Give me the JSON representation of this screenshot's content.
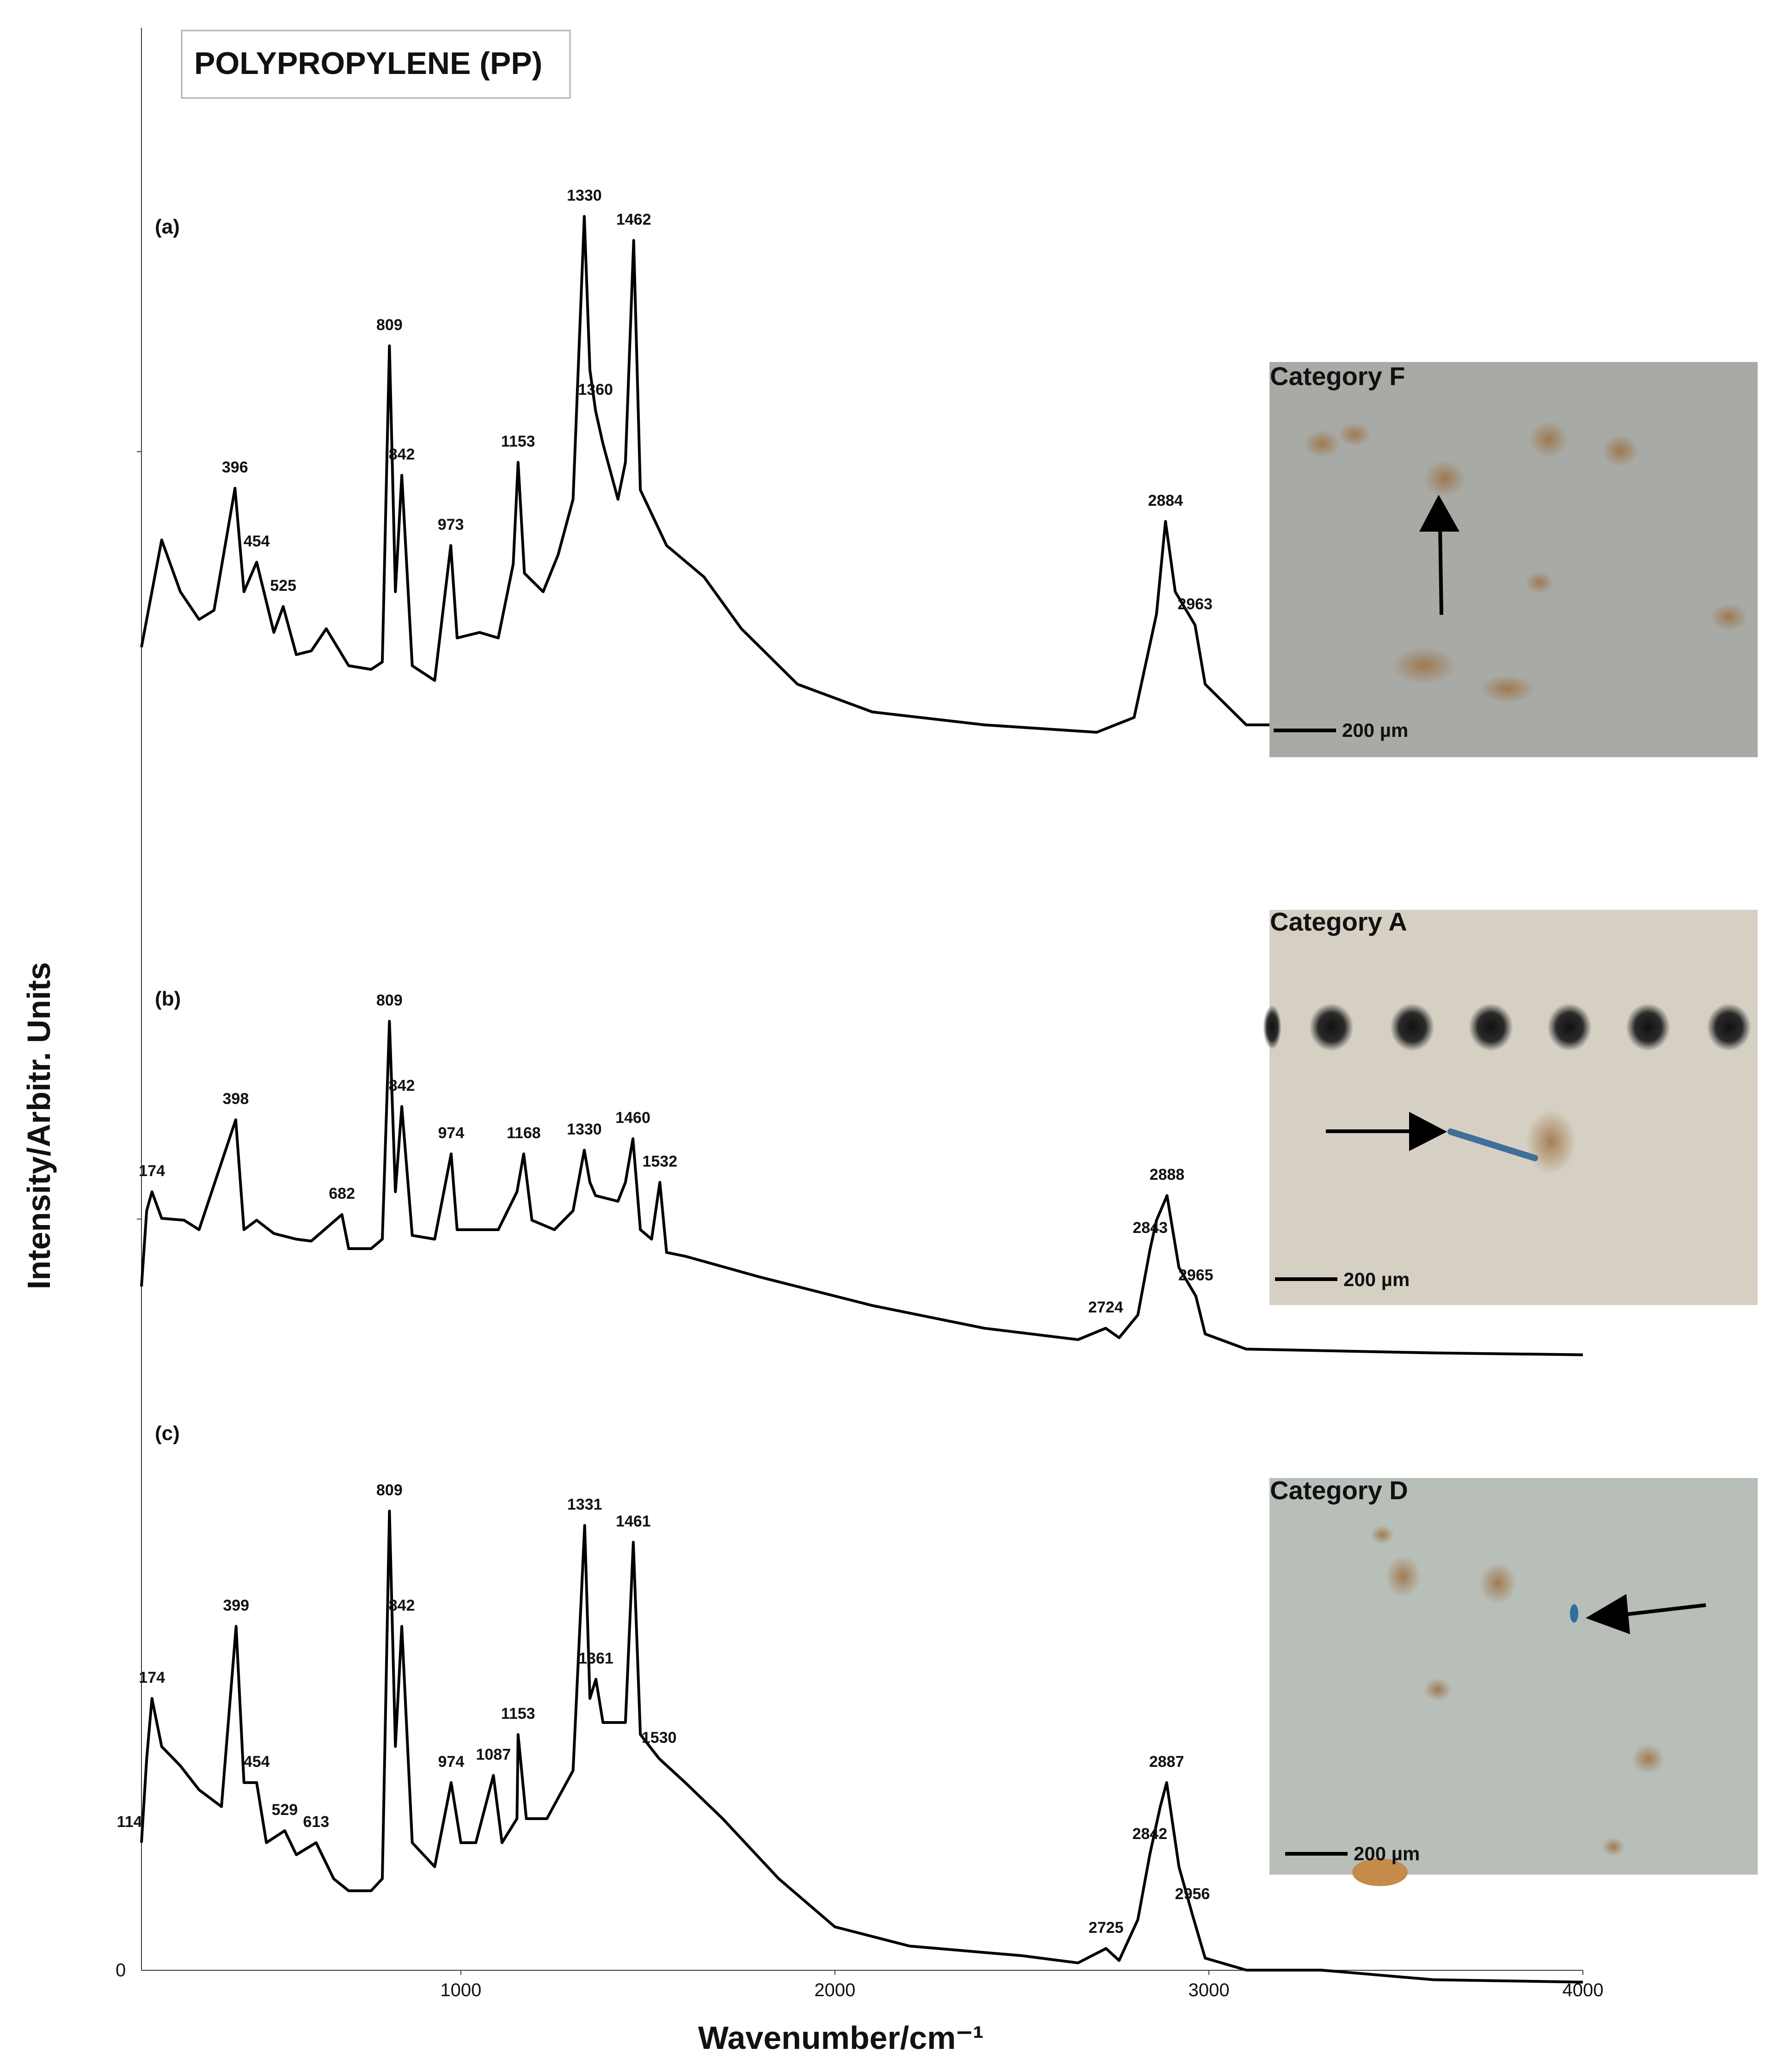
{
  "chart_data": {
    "type": "line",
    "title": "POLYPROPYLENE (PP)",
    "xlabel": "Wavenumber/cm⁻¹",
    "ylabel": "Intensity/Arbitr. Units",
    "xlim": [
      146,
      4000
    ],
    "x_ticks": [
      1000,
      2000,
      3000,
      4000
    ],
    "y_zero_label": "0",
    "grid": false,
    "series": [
      {
        "label": "(a)",
        "points": [
          [
            146,
            0.0
          ],
          [
            200,
            0.58
          ],
          [
            250,
            0.3
          ],
          [
            300,
            0.15
          ],
          [
            340,
            0.2
          ],
          [
            396,
            0.86
          ],
          [
            420,
            0.3
          ],
          [
            454,
            0.46
          ],
          [
            500,
            0.08
          ],
          [
            525,
            0.22
          ],
          [
            560,
            -0.04
          ],
          [
            600,
            -0.02
          ],
          [
            640,
            0.1
          ],
          [
            700,
            -0.1
          ],
          [
            760,
            -0.12
          ],
          [
            790,
            -0.08
          ],
          [
            809,
            1.63
          ],
          [
            825,
            0.3
          ],
          [
            842,
            0.93
          ],
          [
            870,
            -0.1
          ],
          [
            930,
            -0.18
          ],
          [
            973,
            0.55
          ],
          [
            990,
            0.05
          ],
          [
            1050,
            0.08
          ],
          [
            1100,
            0.05
          ],
          [
            1140,
            0.45
          ],
          [
            1153,
            1.0
          ],
          [
            1170,
            0.4
          ],
          [
            1220,
            0.3
          ],
          [
            1260,
            0.5
          ],
          [
            1300,
            0.8
          ],
          [
            1330,
            2.33
          ],
          [
            1345,
            1.5
          ],
          [
            1360,
            1.28
          ],
          [
            1380,
            1.1
          ],
          [
            1420,
            0.8
          ],
          [
            1440,
            1.0
          ],
          [
            1462,
            2.2
          ],
          [
            1480,
            0.85
          ],
          [
            1550,
            0.55
          ],
          [
            1650,
            0.38
          ],
          [
            1750,
            0.1
          ],
          [
            1900,
            -0.2
          ],
          [
            2100,
            -0.35
          ],
          [
            2400,
            -0.42
          ],
          [
            2700,
            -0.46
          ],
          [
            2800,
            -0.38
          ],
          [
            2860,
            0.18
          ],
          [
            2884,
            0.68
          ],
          [
            2910,
            0.3
          ],
          [
            2963,
            0.12
          ],
          [
            2990,
            -0.2
          ],
          [
            3100,
            -0.42
          ],
          [
            3600,
            -0.42
          ],
          [
            4000,
            -0.45
          ]
        ],
        "peaks": [
          396,
          454,
          525,
          809,
          842,
          973,
          1153,
          1330,
          1360,
          1462,
          2884,
          2963
        ]
      },
      {
        "label": "(b)",
        "points": [
          [
            146,
            -0.3
          ],
          [
            160,
            0.1
          ],
          [
            174,
            0.2
          ],
          [
            200,
            0.06
          ],
          [
            260,
            0.05
          ],
          [
            300,
            0.0
          ],
          [
            398,
            0.58
          ],
          [
            420,
            0.0
          ],
          [
            454,
            0.05
          ],
          [
            500,
            -0.02
          ],
          [
            560,
            -0.05
          ],
          [
            600,
            -0.06
          ],
          [
            682,
            0.08
          ],
          [
            700,
            -0.1
          ],
          [
            760,
            -0.1
          ],
          [
            790,
            -0.05
          ],
          [
            809,
            1.1
          ],
          [
            825,
            0.2
          ],
          [
            842,
            0.65
          ],
          [
            870,
            -0.03
          ],
          [
            930,
            -0.05
          ],
          [
            974,
            0.4
          ],
          [
            990,
            0.0
          ],
          [
            1050,
            0.0
          ],
          [
            1100,
            0.0
          ],
          [
            1150,
            0.2
          ],
          [
            1168,
            0.4
          ],
          [
            1190,
            0.05
          ],
          [
            1250,
            0.0
          ],
          [
            1300,
            0.1
          ],
          [
            1330,
            0.42
          ],
          [
            1345,
            0.25
          ],
          [
            1360,
            0.18
          ],
          [
            1420,
            0.15
          ],
          [
            1440,
            0.25
          ],
          [
            1460,
            0.48
          ],
          [
            1480,
            0.0
          ],
          [
            1510,
            -0.05
          ],
          [
            1532,
            0.25
          ],
          [
            1550,
            -0.12
          ],
          [
            1600,
            -0.14
          ],
          [
            1800,
            -0.25
          ],
          [
            2100,
            -0.4
          ],
          [
            2400,
            -0.52
          ],
          [
            2650,
            -0.58
          ],
          [
            2724,
            -0.52
          ],
          [
            2760,
            -0.57
          ],
          [
            2810,
            -0.45
          ],
          [
            2843,
            -0.1
          ],
          [
            2860,
            0.05
          ],
          [
            2888,
            0.18
          ],
          [
            2920,
            -0.2
          ],
          [
            2965,
            -0.35
          ],
          [
            2990,
            -0.55
          ],
          [
            3100,
            -0.63
          ],
          [
            3600,
            -0.65
          ],
          [
            4000,
            -0.66
          ]
        ],
        "peaks": [
          174,
          398,
          682,
          809,
          842,
          974,
          1168,
          1330,
          1460,
          1532,
          2724,
          2843,
          2888,
          2965
        ]
      },
      {
        "label": "(c)",
        "points": [
          [
            146,
            -0.3
          ],
          [
            160,
            0.05
          ],
          [
            174,
            0.3
          ],
          [
            200,
            0.1
          ],
          [
            250,
            0.02
          ],
          [
            300,
            -0.08
          ],
          [
            360,
            -0.15
          ],
          [
            399,
            0.6
          ],
          [
            420,
            -0.05
          ],
          [
            454,
            -0.05
          ],
          [
            480,
            -0.3
          ],
          [
            529,
            -0.25
          ],
          [
            560,
            -0.35
          ],
          [
            613,
            -0.3
          ],
          [
            660,
            -0.45
          ],
          [
            700,
            -0.5
          ],
          [
            760,
            -0.5
          ],
          [
            790,
            -0.45
          ],
          [
            809,
            1.08
          ],
          [
            825,
            0.1
          ],
          [
            842,
            0.6
          ],
          [
            870,
            -0.3
          ],
          [
            930,
            -0.4
          ],
          [
            974,
            -0.05
          ],
          [
            1000,
            -0.3
          ],
          [
            1040,
            -0.3
          ],
          [
            1087,
            -0.02
          ],
          [
            1110,
            -0.3
          ],
          [
            1150,
            -0.2
          ],
          [
            1153,
            0.15
          ],
          [
            1175,
            -0.2
          ],
          [
            1230,
            -0.2
          ],
          [
            1300,
            0.0
          ],
          [
            1331,
            1.02
          ],
          [
            1345,
            0.3
          ],
          [
            1361,
            0.38
          ],
          [
            1380,
            0.2
          ],
          [
            1440,
            0.2
          ],
          [
            1461,
            0.95
          ],
          [
            1480,
            0.15
          ],
          [
            1530,
            0.05
          ],
          [
            1600,
            -0.05
          ],
          [
            1700,
            -0.2
          ],
          [
            1850,
            -0.45
          ],
          [
            2000,
            -0.65
          ],
          [
            2200,
            -0.73
          ],
          [
            2500,
            -0.77
          ],
          [
            2650,
            -0.8
          ],
          [
            2725,
            -0.74
          ],
          [
            2760,
            -0.79
          ],
          [
            2810,
            -0.62
          ],
          [
            2842,
            -0.35
          ],
          [
            2870,
            -0.15
          ],
          [
            2887,
            -0.05
          ],
          [
            2920,
            -0.4
          ],
          [
            2956,
            -0.6
          ],
          [
            2990,
            -0.78
          ],
          [
            3100,
            -0.83
          ],
          [
            3300,
            -0.83
          ],
          [
            3600,
            -0.87
          ],
          [
            4000,
            -0.88
          ]
        ],
        "peaks": [
          114,
          174,
          399,
          454,
          529,
          613,
          809,
          842,
          974,
          1087,
          1153,
          1331,
          1361,
          1461,
          1530,
          2725,
          2842,
          2887,
          2956
        ]
      }
    ],
    "insets": [
      {
        "title": "Category F",
        "scale": "200 µm"
      },
      {
        "title": "Category A",
        "scale": "200 µm"
      },
      {
        "title": "Category D",
        "scale": "200 µm"
      }
    ]
  }
}
